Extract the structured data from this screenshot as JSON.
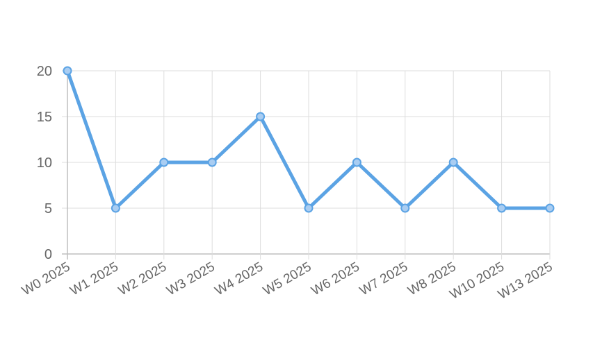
{
  "chart_data": {
    "type": "line",
    "categories": [
      "W0 2025",
      "W1 2025",
      "W2 2025",
      "W3 2025",
      "W4 2025",
      "W5 2025",
      "W6 2025",
      "W7 2025",
      "W8 2025",
      "W10 2025",
      "W13 2025"
    ],
    "series": [
      {
        "values": [
          20,
          5,
          10,
          10,
          15,
          5,
          10,
          5,
          10,
          5,
          5
        ]
      }
    ],
    "ylim": [
      0,
      20
    ],
    "yticks": [
      0,
      5,
      10,
      15,
      20
    ],
    "grid": true,
    "legend": "none",
    "colors": {
      "line": "#5ba3e4",
      "point_fill": "#a9cdf2",
      "grid": "#dddddd",
      "tick_text": "#666666"
    }
  }
}
